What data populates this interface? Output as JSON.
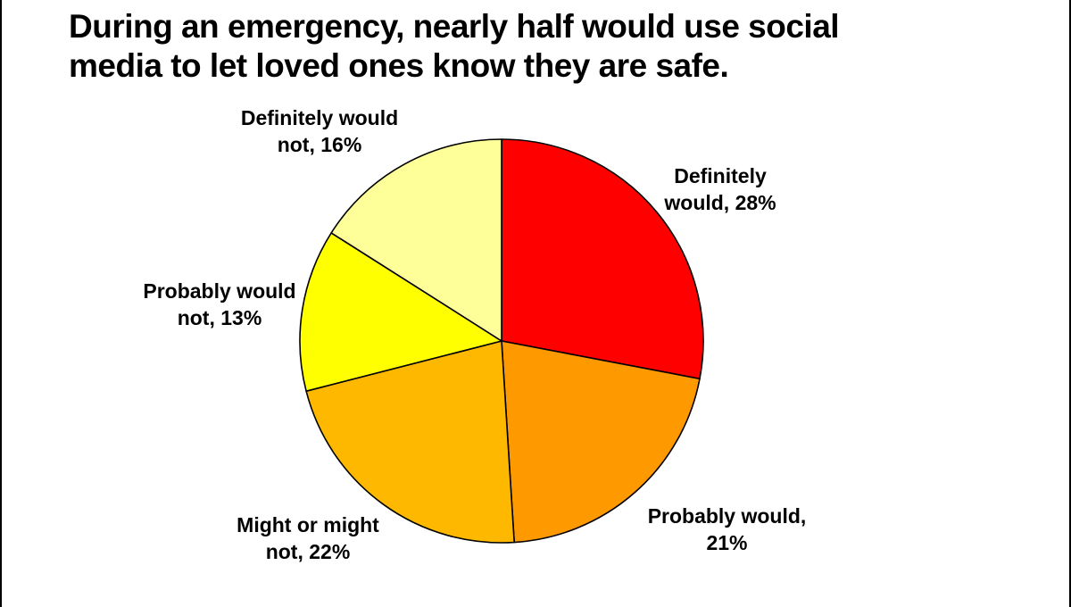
{
  "page": {
    "background_color": "#FFFFFF",
    "edge_border_color": "#000000"
  },
  "title": {
    "line1": "During an emergency, nearly half would use social",
    "line2": "media to let loved ones know they are safe."
  },
  "chart_data": {
    "type": "pie",
    "title": "During an emergency, nearly half would use social media to let loved ones know they are safe.",
    "start_angle_deg": 0,
    "direction": "clockwise",
    "legend": "none",
    "labels_position": "outside",
    "stroke_color": "#000000",
    "slices": [
      {
        "category": "Definitely would",
        "value_pct": 28,
        "color": "#FF0000",
        "label_lines": [
          "Definitely",
          "would, 28%"
        ]
      },
      {
        "category": "Probably would",
        "value_pct": 21,
        "color": "#FF9900",
        "label_lines": [
          "Probably would,",
          "21%"
        ]
      },
      {
        "category": "Might or might not",
        "value_pct": 22,
        "color": "#FFB800",
        "label_lines": [
          "Might or might",
          "not, 22%"
        ]
      },
      {
        "category": "Probably would not",
        "value_pct": 13,
        "color": "#FFFF00",
        "label_lines": [
          "Probably would",
          "not, 13%"
        ]
      },
      {
        "category": "Definitely would not",
        "value_pct": 16,
        "color": "#FFFF99",
        "label_lines": [
          "Definitely would",
          "not, 16%"
        ]
      }
    ]
  }
}
